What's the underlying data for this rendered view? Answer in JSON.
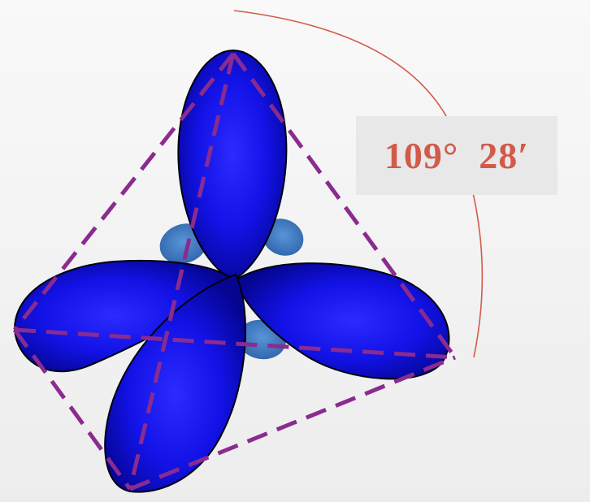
{
  "bond_angle_label": "109°  28′",
  "colors": {
    "lobe_fill": "#1010ee",
    "lobe_highlight": "#2a2aff",
    "lobe_shadow": "#05058a",
    "small_lobe": "#3c78c4",
    "tetrahedron_edge": "#8a2b8f",
    "angle_arc": "#d25a4a",
    "angle_text": "#d25a4a",
    "label_background": "#e8e8e8"
  }
}
